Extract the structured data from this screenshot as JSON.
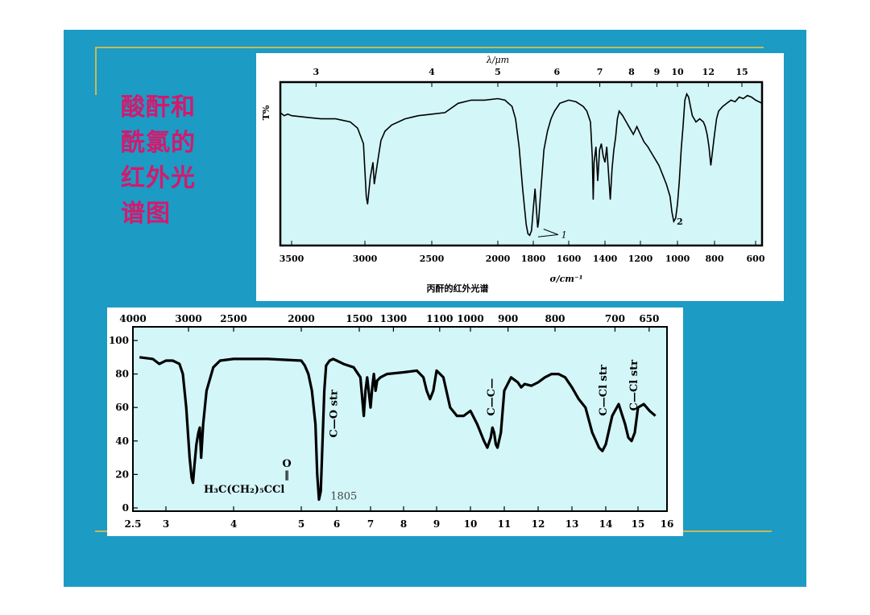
{
  "slide": {
    "title_lines": [
      "酸酐和",
      "酰氯的",
      "红外光",
      "谱图"
    ],
    "colors": {
      "background": "#1c9bc4",
      "plot_fill": "#d3f6f8",
      "title": "#d21a6e",
      "rule": "#c8b85a"
    }
  },
  "chart_data": [
    {
      "type": "line",
      "title": "",
      "caption": "丙酐的红外光谱",
      "xlabel": "σ/cm⁻¹",
      "ylabel": "T%",
      "top_axis_label": "λ/μm",
      "xlim": [
        3800,
        590
      ],
      "ylim": [
        0,
        100
      ],
      "x_ticks": [
        3500,
        3000,
        2500,
        2000,
        1800,
        1600,
        1400,
        1200,
        1000,
        800,
        600
      ],
      "x_tick_labels": [
        "3500",
        "3000",
        "2500",
        "2000",
        "1800",
        "1600",
        "1400",
        "1200",
        "1000",
        "800",
        "600"
      ],
      "top_ticks_um": [
        3,
        4,
        5,
        6,
        7,
        8,
        9,
        10,
        12,
        15
      ],
      "top_tick_labels": [
        "3",
        "4",
        "5",
        "6",
        "7",
        "8",
        "9",
        "10",
        "12",
        "15"
      ],
      "annotations": [
        {
          "text": "1",
          "x": 1760,
          "y": 7
        },
        {
          "text": "2",
          "x": 1030,
          "y": 14
        }
      ],
      "series": [
        {
          "x": [
            3800,
            3700,
            3600,
            3500,
            3400,
            3300,
            3200,
            3100,
            3050,
            3010,
            2990,
            2980,
            2960,
            2940,
            2930,
            2900,
            2880,
            2850,
            2800,
            2700,
            2600,
            2500,
            2400,
            2300,
            2200,
            2100,
            2000,
            1960,
            1920,
            1900,
            1880,
            1860,
            1840,
            1830,
            1820,
            1810,
            1800,
            1790,
            1780,
            1775,
            1770,
            1760,
            1750,
            1740,
            1720,
            1700,
            1680,
            1650,
            1600,
            1560,
            1520,
            1500,
            1480,
            1470,
            1465,
            1460,
            1450,
            1440,
            1430,
            1420,
            1410,
            1400,
            1390,
            1380,
            1370,
            1360,
            1350,
            1340,
            1330,
            1320,
            1300,
            1280,
            1260,
            1240,
            1220,
            1200,
            1180,
            1160,
            1140,
            1120,
            1100,
            1080,
            1060,
            1040,
            1030,
            1020,
            1010,
            1000,
            990,
            980,
            970,
            960,
            950,
            940,
            930,
            920,
            900,
            880,
            860,
            850,
            840,
            830,
            820,
            810,
            800,
            790,
            780,
            760,
            740,
            720,
            700,
            680,
            660,
            640,
            620,
            600,
            590
          ],
          "y": [
            84,
            82,
            83,
            82,
            81,
            80,
            80,
            78,
            74,
            64,
            30,
            25,
            42,
            52,
            38,
            55,
            66,
            72,
            76,
            80,
            82,
            83,
            84,
            90,
            92,
            92,
            93,
            92,
            88,
            80,
            62,
            35,
            12,
            6,
            5,
            8,
            22,
            35,
            18,
            10,
            14,
            30,
            45,
            60,
            72,
            80,
            85,
            90,
            92,
            91,
            88,
            85,
            78,
            55,
            28,
            52,
            62,
            40,
            60,
            64,
            56,
            52,
            62,
            45,
            28,
            48,
            60,
            68,
            80,
            85,
            82,
            78,
            74,
            70,
            75,
            70,
            65,
            62,
            58,
            54,
            50,
            44,
            38,
            30,
            20,
            14,
            16,
            25,
            40,
            60,
            75,
            92,
            96,
            94,
            88,
            82,
            78,
            80,
            78,
            75,
            70,
            62,
            50,
            60,
            70,
            80,
            85,
            88,
            90,
            92,
            91,
            94,
            93,
            95,
            94,
            92,
            90
          ]
        }
      ]
    },
    {
      "type": "line",
      "title": "",
      "xlabel": "",
      "ylabel": "",
      "ylim": [
        0,
        100
      ],
      "xlim_um": [
        2.5,
        16
      ],
      "y_ticks": [
        0,
        20,
        40,
        60,
        80,
        100
      ],
      "y_tick_labels": [
        "0",
        "20",
        "40",
        "60",
        "80",
        "100"
      ],
      "bottom_ticks_um": [
        2.5,
        3,
        4,
        5,
        6,
        7,
        8,
        9,
        10,
        11,
        12,
        13,
        14,
        15,
        16
      ],
      "bottom_tick_labels": [
        "2.5",
        "3",
        "4",
        "5",
        "6",
        "7",
        "8",
        "9",
        "10",
        "11",
        "12",
        "13",
        "14",
        "15",
        "16"
      ],
      "top_ticks_cm": [
        4000,
        3000,
        2500,
        2000,
        1500,
        1300,
        1100,
        1000,
        900,
        800,
        700,
        650
      ],
      "top_tick_labels": [
        "4000",
        "3000",
        "2500",
        "2000",
        "1500",
        "1300",
        "1100",
        "1000",
        "900",
        "800",
        "700",
        "650"
      ],
      "annotations": [
        {
          "text": "C—O str",
          "x": 5.9,
          "y": 42,
          "vertical": true
        },
        {
          "text": "1805",
          "x": 5.55,
          "y": 5
        },
        {
          "text": "C—C—",
          "x": 10.6,
          "y": 55,
          "vertical": true
        },
        {
          "text": "C—Cl str",
          "x": 13.9,
          "y": 55,
          "vertical": true
        },
        {
          "text": "C—Cl str",
          "x": 14.85,
          "y": 58,
          "vertical": true
        }
      ],
      "formula": {
        "main": "H₃C(CH₂)₅CCl",
        "above": "O",
        "bond": "‖"
      },
      "series": [
        {
          "x": [
            2.6,
            2.8,
            2.9,
            3.0,
            3.1,
            3.2,
            3.25,
            3.3,
            3.35,
            3.38,
            3.4,
            3.42,
            3.45,
            3.48,
            3.5,
            3.52,
            3.55,
            3.6,
            3.7,
            3.8,
            4.0,
            4.5,
            5.0,
            5.1,
            5.2,
            5.3,
            5.4,
            5.45,
            5.5,
            5.55,
            5.6,
            5.65,
            5.7,
            5.8,
            5.9,
            6.0,
            6.2,
            6.5,
            6.7,
            6.8,
            6.85,
            6.9,
            7.0,
            7.05,
            7.1,
            7.15,
            7.2,
            7.3,
            7.5,
            8.0,
            8.4,
            8.6,
            8.7,
            8.8,
            8.9,
            9.0,
            9.2,
            9.4,
            9.6,
            9.8,
            10.0,
            10.2,
            10.4,
            10.5,
            10.6,
            10.65,
            10.7,
            10.75,
            10.8,
            10.9,
            11.0,
            11.2,
            11.4,
            11.5,
            11.6,
            11.8,
            12.0,
            12.2,
            12.4,
            12.6,
            12.8,
            13.0,
            13.2,
            13.4,
            13.6,
            13.8,
            13.9,
            14.0,
            14.2,
            14.4,
            14.6,
            14.7,
            14.8,
            14.9,
            15.0,
            15.2,
            15.4,
            15.6
          ],
          "y": [
            90,
            89,
            86,
            88,
            88,
            86,
            80,
            60,
            30,
            18,
            15,
            25,
            38,
            45,
            48,
            30,
            50,
            70,
            84,
            88,
            89,
            89,
            88,
            85,
            80,
            70,
            50,
            20,
            5,
            10,
            40,
            70,
            85,
            88,
            89,
            88,
            86,
            84,
            78,
            55,
            70,
            78,
            60,
            72,
            80,
            70,
            76,
            78,
            80,
            81,
            82,
            78,
            70,
            65,
            70,
            82,
            78,
            60,
            55,
            55,
            58,
            50,
            40,
            36,
            42,
            48,
            45,
            38,
            36,
            45,
            70,
            78,
            75,
            72,
            74,
            73,
            75,
            78,
            80,
            80,
            78,
            72,
            65,
            60,
            45,
            36,
            34,
            38,
            55,
            62,
            50,
            42,
            40,
            45,
            60,
            62,
            58,
            55
          ]
        }
      ]
    }
  ]
}
